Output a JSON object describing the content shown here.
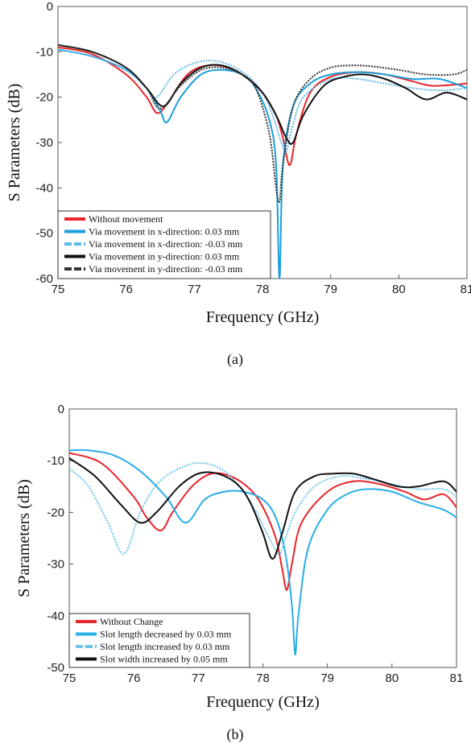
{
  "chart_data": [
    {
      "type": "line",
      "caption": "(a)",
      "xlabel": "Frequency (GHz)",
      "ylabel": "S Parameters (dB)",
      "xlim": [
        75,
        81
      ],
      "ylim": [
        -60,
        0
      ],
      "x_ticks": [
        "75",
        "76",
        "77",
        "78",
        "79",
        "80",
        "81"
      ],
      "y_ticks": [
        "0",
        "-10",
        "-20",
        "-30",
        "-40",
        "-50",
        "-60"
      ],
      "legend_position": "bottom-left",
      "grid": false,
      "series": [
        {
          "name": "Without movement",
          "color": "#e8252b",
          "style": "solid",
          "x": [
            75,
            75.5,
            76,
            76.3,
            76.45,
            76.6,
            76.9,
            77.2,
            77.5,
            77.8,
            78.0,
            78.2,
            78.3,
            78.4,
            78.5,
            78.7,
            79,
            79.4,
            79.8,
            80.2,
            80.5,
            81
          ],
          "y": [
            -9,
            -10.5,
            -15,
            -20,
            -23.5,
            -21.5,
            -15,
            -13,
            -13.5,
            -16,
            -19,
            -24,
            -29,
            -35,
            -28,
            -19,
            -15.5,
            -14.5,
            -15,
            -16.5,
            -17.5,
            -17
          ]
        },
        {
          "name": "Via movement in x-direction: 0.03 mm",
          "color": "#1a9fdb",
          "style": "solid",
          "x": [
            75,
            75.5,
            76,
            76.3,
            76.5,
            76.6,
            76.8,
            77.1,
            77.4,
            77.7,
            77.9,
            78.1,
            78.2,
            78.25,
            78.3,
            78.45,
            78.7,
            79,
            79.4,
            79.8,
            80.2,
            80.6,
            81
          ],
          "y": [
            -9.5,
            -11,
            -14,
            -18,
            -23,
            -25.5,
            -20,
            -15,
            -14,
            -15,
            -18,
            -25,
            -35,
            -60,
            -35,
            -22,
            -17,
            -15,
            -14.5,
            -15,
            -16,
            -16,
            -18
          ]
        },
        {
          "name": "Via movement in x-direction: -0.03 mm",
          "color": "#5fb8e8",
          "style": "dashed",
          "x": [
            75,
            75.5,
            76,
            76.3,
            76.45,
            76.7,
            77,
            77.3,
            77.6,
            77.9,
            78.1,
            78.3,
            78.35,
            78.45,
            78.6,
            79,
            79.4,
            79.8,
            80.2,
            80.6,
            81
          ],
          "y": [
            -9.5,
            -11,
            -14,
            -18,
            -20,
            -15,
            -12.5,
            -12,
            -13.5,
            -17,
            -22,
            -31,
            -32,
            -26,
            -20,
            -16,
            -16,
            -17,
            -18,
            -18.5,
            -18
          ]
        },
        {
          "name": "Via movement in y-direction: 0.03 mm",
          "color": "#111111",
          "style": "solid",
          "x": [
            75,
            75.5,
            76,
            76.3,
            76.55,
            76.8,
            77.1,
            77.4,
            77.7,
            78.0,
            78.2,
            78.35,
            78.45,
            78.6,
            78.9,
            79.2,
            79.5,
            79.8,
            80.1,
            80.4,
            80.7,
            81
          ],
          "y": [
            -8.5,
            -10,
            -13.5,
            -18,
            -22,
            -17,
            -13.5,
            -13,
            -15,
            -19,
            -24,
            -29,
            -30,
            -24,
            -17.5,
            -15.5,
            -15,
            -16,
            -18,
            -20.5,
            -19,
            -20.5
          ]
        },
        {
          "name": "Via movement in y-direction: -0.03 mm",
          "color": "#333333",
          "style": "dashed",
          "x": [
            75,
            75.5,
            76,
            76.3,
            76.5,
            76.8,
            77.1,
            77.4,
            77.7,
            77.9,
            78.1,
            78.2,
            78.25,
            78.3,
            78.45,
            78.7,
            79,
            79.3,
            79.6,
            80,
            80.4,
            80.8,
            81
          ],
          "y": [
            -8.5,
            -10,
            -13.5,
            -18,
            -22.5,
            -17.5,
            -14,
            -13.5,
            -15,
            -18,
            -28,
            -40,
            -43,
            -35,
            -22,
            -16,
            -13.5,
            -13,
            -13.2,
            -14,
            -15,
            -15,
            -14
          ]
        }
      ]
    },
    {
      "type": "line",
      "caption": "(b)",
      "xlabel": "Frequency (GHz)",
      "ylabel": "S Parameters (dB)",
      "xlim": [
        75,
        81
      ],
      "ylim": [
        -50,
        0
      ],
      "x_ticks": [
        "75",
        "76",
        "77",
        "78",
        "79",
        "80",
        "81"
      ],
      "y_ticks": [
        "0",
        "-10",
        "-20",
        "-30",
        "-40",
        "-50"
      ],
      "legend_position": "bottom-left",
      "grid": false,
      "series": [
        {
          "name": "Without Change",
          "color": "#e8252b",
          "style": "solid",
          "x": [
            75,
            75.5,
            76,
            76.2,
            76.42,
            76.6,
            76.9,
            77.2,
            77.5,
            77.8,
            78.0,
            78.2,
            78.3,
            78.37,
            78.45,
            78.6,
            79,
            79.4,
            79.8,
            80.2,
            80.5,
            80.8,
            81
          ],
          "y": [
            -8.5,
            -10.5,
            -17,
            -21,
            -23.5,
            -20,
            -15,
            -12.5,
            -13,
            -15.5,
            -19,
            -25,
            -31,
            -35,
            -30,
            -22,
            -16,
            -14,
            -14.5,
            -16,
            -17.5,
            -16.5,
            -19
          ]
        },
        {
          "name": "Slot length decreased by 0.03 mm",
          "color": "#29aee8",
          "style": "solid",
          "x": [
            75,
            75.3,
            75.7,
            76.1,
            76.5,
            76.8,
            77.1,
            77.4,
            77.7,
            78.0,
            78.2,
            78.35,
            78.45,
            78.5,
            78.55,
            78.7,
            79,
            79.3,
            79.6,
            80,
            80.4,
            80.8,
            81
          ],
          "y": [
            -8,
            -8,
            -9,
            -12,
            -17,
            -22,
            -17.5,
            -16,
            -16,
            -17.5,
            -21,
            -28,
            -38,
            -47.5,
            -40,
            -27,
            -19.5,
            -16.5,
            -15.5,
            -16,
            -18,
            -19.5,
            -21
          ]
        },
        {
          "name": "Slot length increased by 0.03 mm",
          "color": "#6dc5ee",
          "style": "dashed",
          "x": [
            75,
            75.3,
            75.6,
            75.85,
            76.1,
            76.4,
            76.8,
            77.1,
            77.4,
            77.7,
            77.9,
            78.1,
            78.25,
            78.35,
            78.5,
            78.8,
            79.2,
            79.6,
            80,
            80.4,
            80.8,
            81
          ],
          "y": [
            -11.5,
            -15,
            -22,
            -28,
            -20,
            -14,
            -11,
            -10.5,
            -12,
            -16,
            -20,
            -25,
            -28,
            -25,
            -20,
            -15,
            -13,
            -13.5,
            -14.5,
            -15.5,
            -15.5,
            -17
          ]
        },
        {
          "name": "Slot width increased by 0.05 mm",
          "color": "#111111",
          "style": "solid",
          "x": [
            75,
            75.4,
            75.8,
            76.1,
            76.35,
            76.7,
            77.0,
            77.3,
            77.6,
            77.8,
            78.0,
            78.15,
            78.3,
            78.5,
            78.8,
            79.1,
            79.4,
            79.7,
            80.1,
            80.4,
            80.8,
            81
          ],
          "y": [
            -9.5,
            -13,
            -18.5,
            -22,
            -20,
            -15,
            -12.5,
            -12.5,
            -14.5,
            -18,
            -24,
            -29,
            -24,
            -16,
            -13,
            -12.5,
            -12.5,
            -13.5,
            -15,
            -15,
            -14,
            -16
          ]
        }
      ]
    }
  ]
}
